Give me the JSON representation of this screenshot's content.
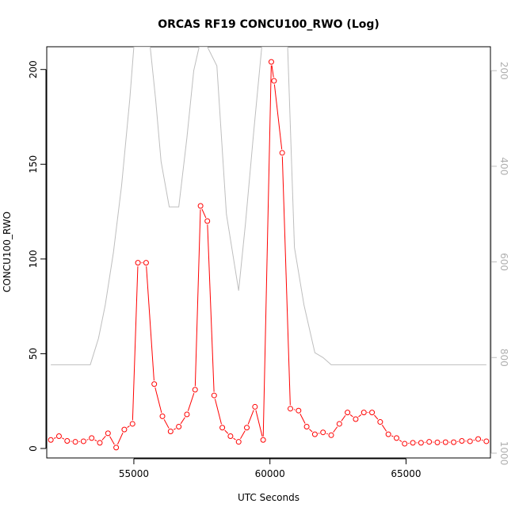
{
  "chart_data": {
    "type": "line",
    "title": "ORCAS RF19 CONCU100_RWO (Log)",
    "xlabel": "UTC Seconds",
    "ylabel": "CONCU100_RWO",
    "xlim": [
      51800,
      68100
    ],
    "ylim": [
      -5,
      212
    ],
    "x_ticks": [
      55000,
      60000,
      65000
    ],
    "x_tick_labels": [
      "55000",
      "60000",
      "65000"
    ],
    "y_ticks": [
      0,
      50,
      100,
      150,
      200
    ],
    "y_tick_labels": [
      "0",
      "50",
      "100",
      "150",
      "200"
    ],
    "y2lim": [
      1010,
      150
    ],
    "y2_ticks": [
      200,
      400,
      600,
      800,
      1000
    ],
    "y2_tick_labels": [
      "200",
      "400",
      "600",
      "800",
      "1000"
    ],
    "grid": false,
    "series": [
      {
        "color": "#ff0000",
        "marker": "open-circle",
        "axis": "left",
        "x": [
          51950,
          52250,
          52550,
          52850,
          53150,
          53450,
          53750,
          54050,
          54350,
          54650,
          54950,
          55150,
          55450,
          55750,
          56050,
          56350,
          56650,
          56950,
          57250,
          57450,
          57700,
          57950,
          58250,
          58550,
          58850,
          59150,
          59450,
          59750,
          60050,
          60150,
          60450,
          60750,
          61050,
          61350,
          61650,
          61950,
          62250,
          62550,
          62850,
          63150,
          63450,
          63750,
          64050,
          64350,
          64650,
          64950,
          65250,
          65550,
          65850,
          66150,
          66450,
          66750,
          67050,
          67350,
          67650,
          67950
        ],
        "values": [
          4.5,
          6.5,
          4,
          3.5,
          3.8,
          5.5,
          3,
          8,
          0.5,
          10,
          13,
          98,
          98,
          34,
          17,
          9,
          11.5,
          18,
          31,
          128,
          120,
          28,
          11,
          6.5,
          3.5,
          11,
          22,
          4.5,
          204,
          194,
          156,
          21,
          20,
          11.5,
          7.5,
          8.5,
          7,
          13,
          19,
          15.5,
          19,
          19,
          14,
          7.5,
          5.5,
          2.5,
          3,
          3,
          3.5,
          3.2,
          3.3,
          3.3,
          4,
          3.8,
          5,
          3.8
        ]
      },
      {
        "color": "#bebebe",
        "marker": "none",
        "axis": "right",
        "x": [
          51950,
          53400,
          53700,
          53950,
          54250,
          54550,
          54850,
          55000,
          55600,
          55800,
          56000,
          56300,
          56650,
          56950,
          57200,
          57400,
          57700,
          58050,
          58400,
          58850,
          59100,
          59400,
          59700,
          60000,
          60200,
          60650,
          60900,
          61250,
          61650,
          61950,
          62250,
          63000,
          64000,
          65000,
          66000,
          67000,
          67950
        ],
        "values": [
          815,
          815,
          760,
          690,
          580,
          440,
          260,
          150,
          150,
          260,
          390,
          485,
          485,
          340,
          200,
          150,
          150,
          190,
          500,
          660,
          520,
          330,
          150,
          150,
          150,
          150,
          570,
          690,
          790,
          800,
          815,
          815,
          815,
          815,
          815,
          815,
          815
        ]
      }
    ]
  }
}
